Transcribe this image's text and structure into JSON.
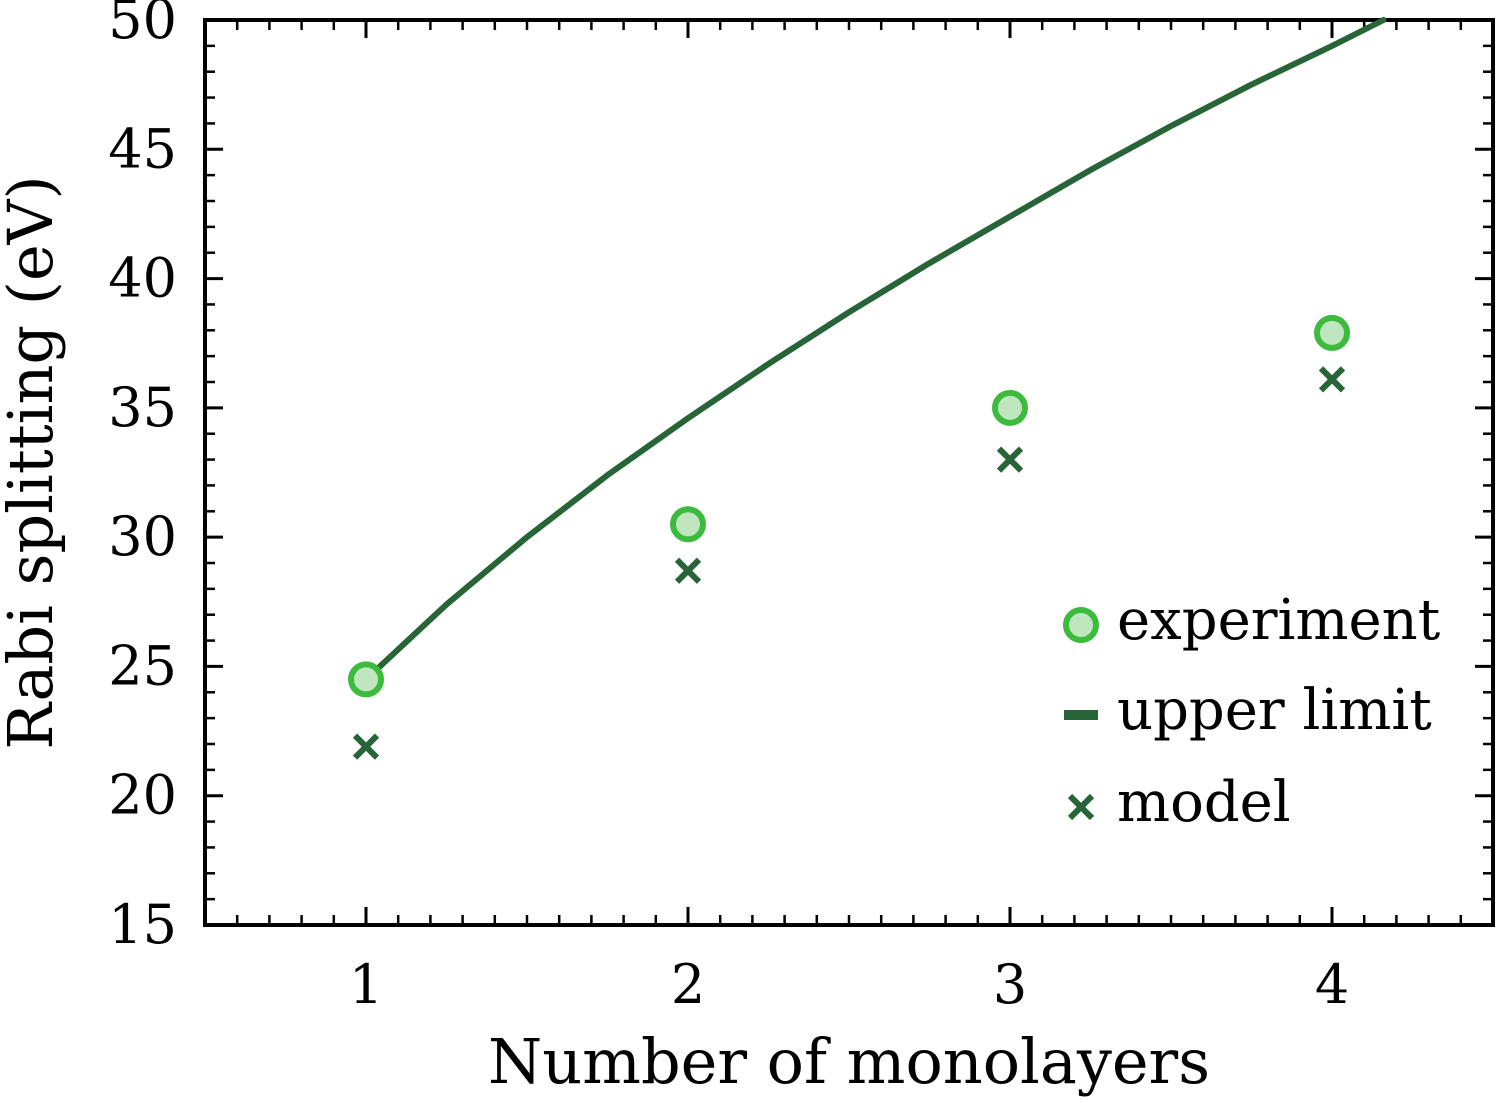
{
  "chart_data": {
    "type": "scatter",
    "xlabel": "Number of monolayers",
    "ylabel": "Rabi splitting (eV)",
    "xlim": [
      0.5,
      4.5
    ],
    "ylim": [
      15,
      50
    ],
    "xticks": [
      1,
      2,
      3,
      4
    ],
    "yticks": [
      15,
      20,
      25,
      30,
      35,
      40,
      45,
      50
    ],
    "grid": false,
    "legend_position": "right",
    "series": [
      {
        "name": "experiment",
        "kind": "marker-circle",
        "color": "#3dbb3d",
        "fill": "#bfe6bf",
        "x": [
          1,
          2,
          3,
          4
        ],
        "y": [
          24.5,
          30.5,
          35.0,
          37.9
        ]
      },
      {
        "name": "upper limit",
        "kind": "line",
        "color": "#276437",
        "x": [
          1.0,
          1.25,
          1.5,
          1.75,
          2.0,
          2.25,
          2.5,
          2.75,
          3.0,
          3.25,
          3.5,
          3.75,
          4.0,
          4.16
        ],
        "y": [
          24.5,
          27.4,
          30.0,
          32.4,
          34.6,
          36.7,
          38.7,
          40.6,
          42.4,
          44.2,
          45.9,
          47.5,
          49.0,
          50.0
        ]
      },
      {
        "name": "model",
        "kind": "marker-x",
        "color": "#276437",
        "x": [
          1,
          2,
          3,
          4
        ],
        "y": [
          21.9,
          28.7,
          33.0,
          36.1
        ]
      }
    ]
  }
}
